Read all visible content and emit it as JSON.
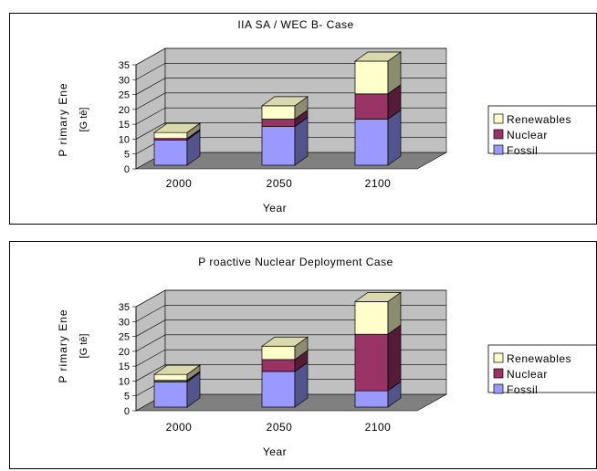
{
  "chart_data": [
    {
      "type": "bar",
      "stacked": true,
      "three_d": true,
      "title": "IIA SA / WEC B- Case",
      "xlabel": "Year",
      "ylabel_line1": "P rimary  Ene",
      "ylabel_line2": "[G tē]",
      "categories": [
        "2000",
        "2050",
        "2100"
      ],
      "yticks": [
        "0",
        "5",
        "10",
        "15",
        "20",
        "25",
        "30",
        "35"
      ],
      "ylim": [
        0,
        35
      ],
      "grid": true,
      "legend_position": "right",
      "legend": [
        "Renewables",
        "Nuclear",
        "Fossil"
      ],
      "series": [
        {
          "name": "Fossil",
          "values": [
            8.5,
            13,
            15.5
          ],
          "color": "#9999ff"
        },
        {
          "name": "Nuclear",
          "values": [
            0.5,
            2.5,
            8.5
          ],
          "color": "#993366"
        },
        {
          "name": "Renewables",
          "values": [
            2,
            4.5,
            11
          ],
          "color": "#ffffcc"
        }
      ]
    },
    {
      "type": "bar",
      "stacked": true,
      "three_d": true,
      "title": "P roactive  Nuclear  Deployment  Case",
      "xlabel": "Year",
      "ylabel_line1": "P rimary  Ene",
      "ylabel_line2": "[G tē]",
      "categories": [
        "2000",
        "2050",
        "2100"
      ],
      "yticks": [
        "0",
        "5",
        "10",
        "15",
        "20",
        "25",
        "30",
        "35"
      ],
      "ylim": [
        0,
        35
      ],
      "grid": true,
      "legend_position": "right",
      "legend": [
        "Renewables",
        "Nuclear",
        "Fossil"
      ],
      "series": [
        {
          "name": "Fossil",
          "values": [
            8.5,
            12,
            5.5
          ],
          "color": "#9999ff"
        },
        {
          "name": "Nuclear",
          "values": [
            0.5,
            4,
            19
          ],
          "color": "#993366"
        },
        {
          "name": "Renewables",
          "values": [
            2,
            4.5,
            11
          ],
          "color": "#ffffcc"
        }
      ]
    }
  ]
}
